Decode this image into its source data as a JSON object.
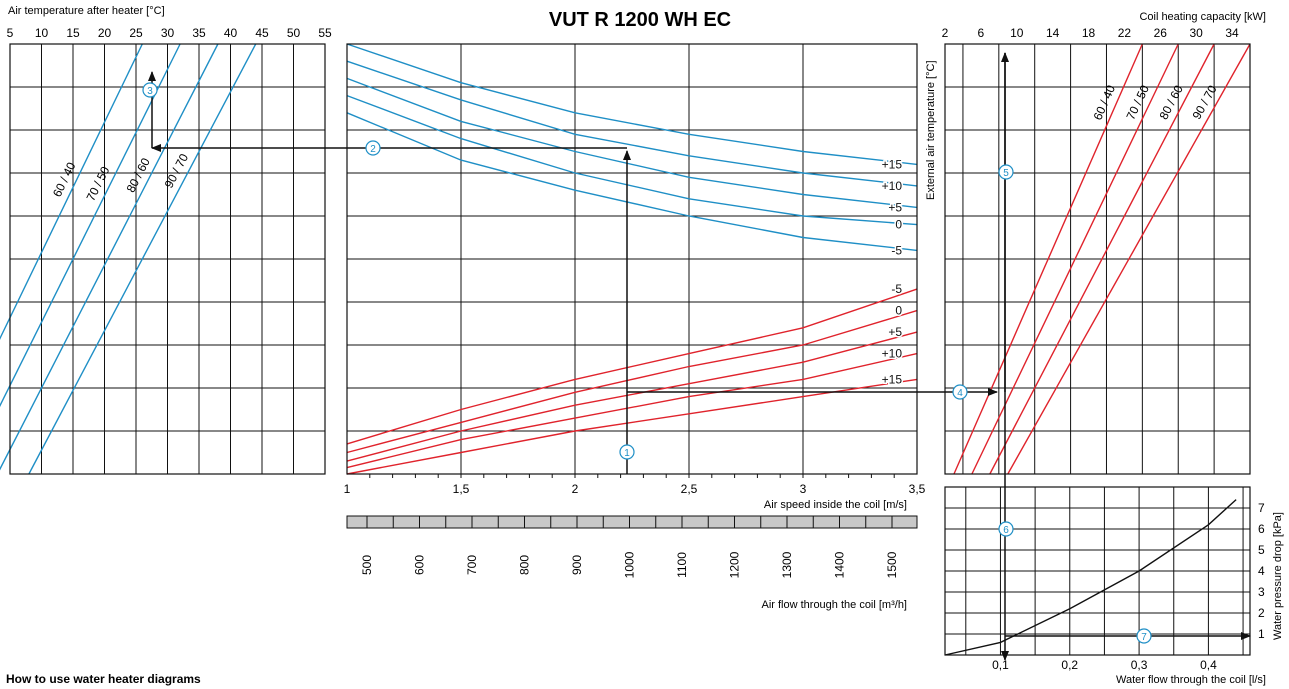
{
  "page_title": "VUT R 1200 WH EC",
  "footer_title": "How to use water heater diagrams",
  "colors": {
    "blue": "#1f8fc6",
    "red": "#e0232c",
    "black": "#111111",
    "grid": "#111111",
    "scale_band": "#c8c8c8"
  },
  "chart_data": [
    {
      "id": "air-temp-after-heater",
      "type": "line",
      "title": "",
      "xlabel": "Air temperature after heater [°C]",
      "x_ticks": [
        "5",
        "10",
        "15",
        "20",
        "25",
        "30",
        "35",
        "40",
        "45",
        "50",
        "55"
      ],
      "xlim": [
        5,
        55
      ],
      "ylim": [
        0,
        10
      ],
      "series": [
        {
          "name": "60 / 40",
          "x": [
            -7,
            26
          ],
          "y": [
            0,
            10
          ]
        },
        {
          "name": "70 / 50",
          "x": [
            -2,
            32
          ],
          "y": [
            0,
            10
          ]
        },
        {
          "name": "80 / 60",
          "x": [
            3,
            38
          ],
          "y": [
            0,
            10
          ]
        },
        {
          "name": "90 / 70",
          "x": [
            8,
            44
          ],
          "y": [
            0,
            10
          ]
        }
      ]
    },
    {
      "id": "air-speed-center",
      "type": "line",
      "title": "",
      "xlabel": "Air speed inside the coil [m/s]",
      "x_ticks": [
        "1",
        "1,5",
        "2",
        "2,5",
        "3",
        "3,5"
      ],
      "xlim": [
        1,
        3.5
      ],
      "ylim": [
        0,
        10
      ],
      "right_axis_label": "External air temperature [°C]",
      "secondary_axis": {
        "label": "Air flow through the coil [m³/h]",
        "ticks": [
          "500",
          "600",
          "700",
          "800",
          "900",
          "1000",
          "1100",
          "1200",
          "1300",
          "1400",
          "1500"
        ]
      },
      "series_upper": [
        {
          "name": "+15",
          "x": [
            1,
            1.5,
            2,
            2.5,
            3,
            3.5
          ],
          "y": [
            10.0,
            9.1,
            8.4,
            7.9,
            7.5,
            7.2
          ]
        },
        {
          "name": "+10",
          "x": [
            1,
            1.5,
            2,
            2.5,
            3,
            3.5
          ],
          "y": [
            9.6,
            8.7,
            7.9,
            7.4,
            7.0,
            6.7
          ]
        },
        {
          "name": "+5",
          "x": [
            1,
            1.5,
            2,
            2.5,
            3,
            3.5
          ],
          "y": [
            9.2,
            8.2,
            7.5,
            6.9,
            6.5,
            6.2
          ]
        },
        {
          "name": "0",
          "x": [
            1,
            1.5,
            2,
            2.5,
            3,
            3.5
          ],
          "y": [
            8.8,
            7.8,
            7.0,
            6.4,
            6.0,
            5.8
          ]
        },
        {
          "name": "-5",
          "x": [
            1,
            1.5,
            2,
            2.5,
            3,
            3.5
          ],
          "y": [
            8.4,
            7.3,
            6.6,
            6.0,
            5.5,
            5.2
          ]
        }
      ],
      "series_lower": [
        {
          "name": "-5",
          "x": [
            1,
            1.5,
            2,
            2.5,
            3,
            3.5
          ],
          "y": [
            0.7,
            1.5,
            2.2,
            2.8,
            3.4,
            4.3
          ]
        },
        {
          "name": "0",
          "x": [
            1,
            1.5,
            2,
            2.5,
            3,
            3.5
          ],
          "y": [
            0.5,
            1.2,
            1.9,
            2.5,
            3.0,
            3.8
          ]
        },
        {
          "name": "+5",
          "x": [
            1,
            1.5,
            2,
            2.5,
            3,
            3.5
          ],
          "y": [
            0.3,
            1.0,
            1.6,
            2.1,
            2.6,
            3.3
          ]
        },
        {
          "name": "+10",
          "x": [
            1,
            1.5,
            2,
            2.5,
            3,
            3.5
          ],
          "y": [
            0.15,
            0.8,
            1.3,
            1.8,
            2.2,
            2.8
          ]
        },
        {
          "name": "+15",
          "x": [
            1,
            1.5,
            2,
            2.5,
            3,
            3.5
          ],
          "y": [
            0.0,
            0.5,
            1.0,
            1.4,
            1.8,
            2.2
          ]
        }
      ]
    },
    {
      "id": "coil-heating-capacity",
      "type": "line",
      "title": "",
      "xlabel": "Coil heating capacity [kW]",
      "x_ticks": [
        "2",
        "6",
        "10",
        "14",
        "18",
        "22",
        "26",
        "30",
        "34"
      ],
      "xlim": [
        2,
        36
      ],
      "ylim": [
        0,
        10
      ],
      "series": [
        {
          "name": "60 / 40",
          "x": [
            3,
            24
          ],
          "y": [
            0,
            10
          ]
        },
        {
          "name": "70 / 50",
          "x": [
            5,
            28
          ],
          "y": [
            0,
            10
          ]
        },
        {
          "name": "80 / 60",
          "x": [
            7,
            32
          ],
          "y": [
            0,
            10
          ]
        },
        {
          "name": "90 / 70",
          "x": [
            9,
            36
          ],
          "y": [
            0,
            10
          ]
        }
      ]
    },
    {
      "id": "water-pressure-drop",
      "type": "line",
      "title": "",
      "xlabel": "Water flow through the coil [l/s]",
      "ylabel": "Water pressure drop [kPa]",
      "x_ticks": [
        "0,1",
        "0,2",
        "0,3",
        "0,4"
      ],
      "y_ticks": [
        "1",
        "2",
        "3",
        "4",
        "5",
        "6",
        "7"
      ],
      "xlim": [
        0.02,
        0.46
      ],
      "ylim": [
        0,
        8
      ],
      "series": [
        {
          "name": "",
          "x": [
            0.02,
            0.1,
            0.2,
            0.3,
            0.4,
            0.44
          ],
          "y": [
            0.0,
            0.6,
            2.2,
            4.0,
            6.2,
            7.4
          ]
        }
      ]
    }
  ],
  "steps": [
    "1",
    "2",
    "3",
    "4",
    "5",
    "6",
    "7"
  ]
}
